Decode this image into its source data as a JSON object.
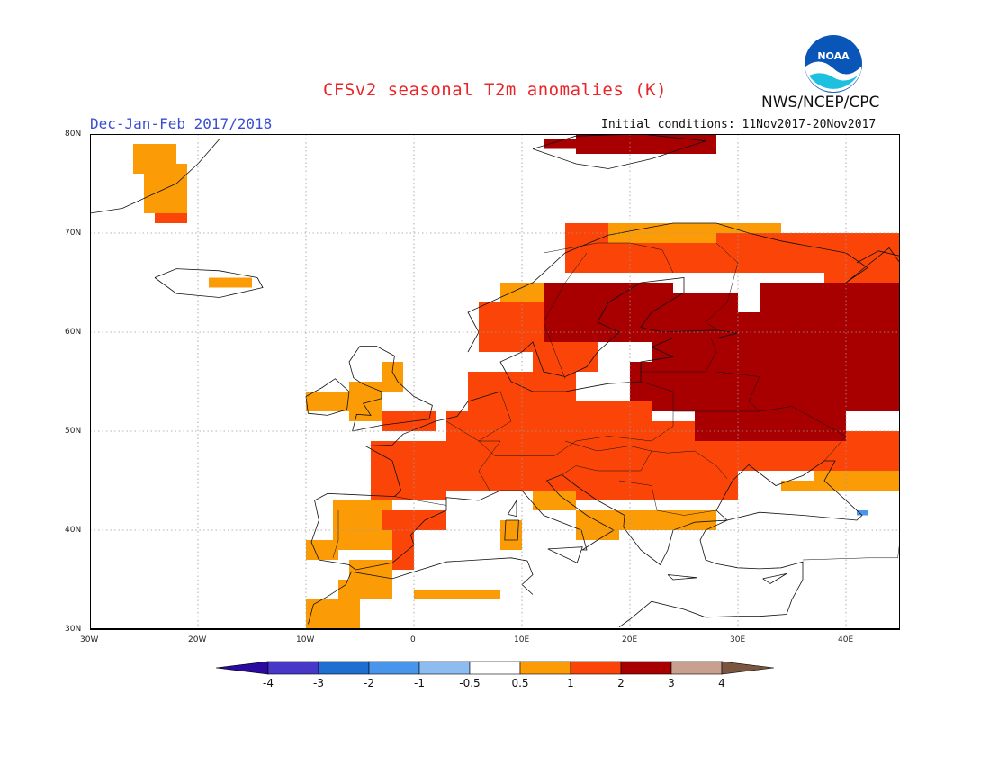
{
  "title": "CFSv2 seasonal T2m anomalies (K)",
  "season": "Dec-Jan-Feb 2017/2018",
  "initial_conditions": "Initial conditions: 11Nov2017-20Nov2017",
  "agency": "NWS/NCEP/CPC",
  "logo_text": "NOAA",
  "map": {
    "lon_range": [
      -30,
      45
    ],
    "lat_range": [
      30,
      80
    ],
    "lat_labels": [
      "80N",
      "70N",
      "60N",
      "50N",
      "40N",
      "30N"
    ],
    "lon_labels": [
      "30W",
      "20W",
      "10W",
      "0",
      "10E",
      "20E",
      "30E",
      "40E"
    ]
  },
  "legend": {
    "labels": [
      "-4",
      "-3",
      "-2",
      "-1",
      "-0.5",
      "0.5",
      "1",
      "2",
      "3",
      "4"
    ],
    "colors": [
      "#2a0aa0",
      "#4838c8",
      "#1f6fd0",
      "#4a95ec",
      "#8dbdf0",
      "#ffffff",
      "#fb9c07",
      "#fb4508",
      "#a80000",
      "#c8a090",
      "#7a5540"
    ]
  }
}
